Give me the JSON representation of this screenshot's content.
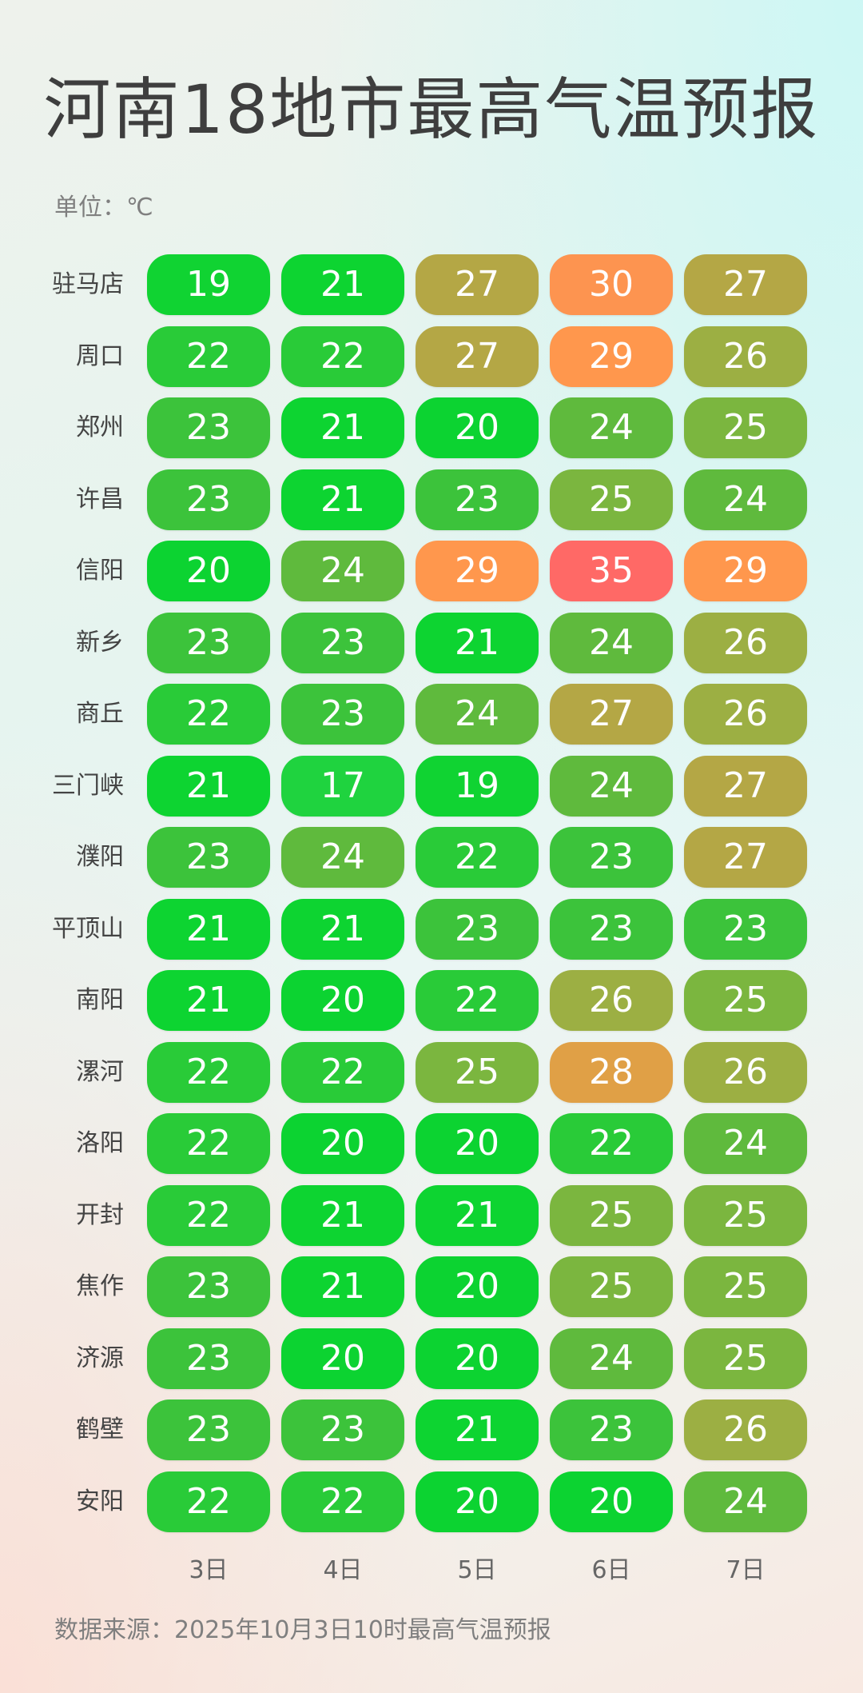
{
  "title": "河南18地市最高气温预报",
  "unit": "单位：℃",
  "source": "数据来源：2025年10月3日10时最高气温预报",
  "chart_data": {
    "type": "heatmap",
    "title": "河南18地市最高气温预报",
    "unit": "℃",
    "columns": [
      "3日",
      "4日",
      "5日",
      "6日",
      "7日"
    ],
    "rows": [
      "驻马店",
      "周口",
      "郑州",
      "许昌",
      "信阳",
      "新乡",
      "商丘",
      "三门峡",
      "濮阳",
      "平顶山",
      "南阳",
      "漯河",
      "洛阳",
      "开封",
      "焦作",
      "济源",
      "鹤壁",
      "安阳"
    ],
    "values": [
      [
        19,
        21,
        27,
        30,
        27
      ],
      [
        22,
        22,
        27,
        29,
        26
      ],
      [
        23,
        21,
        20,
        24,
        25
      ],
      [
        23,
        21,
        23,
        25,
        24
      ],
      [
        20,
        24,
        29,
        35,
        29
      ],
      [
        23,
        23,
        21,
        24,
        26
      ],
      [
        22,
        23,
        24,
        27,
        26
      ],
      [
        21,
        17,
        19,
        24,
        27
      ],
      [
        23,
        24,
        22,
        23,
        27
      ],
      [
        21,
        21,
        23,
        23,
        23
      ],
      [
        21,
        20,
        22,
        26,
        25
      ],
      [
        22,
        22,
        25,
        28,
        26
      ],
      [
        22,
        20,
        20,
        22,
        24
      ],
      [
        22,
        21,
        21,
        25,
        25
      ],
      [
        23,
        21,
        20,
        25,
        25
      ],
      [
        23,
        20,
        20,
        24,
        25
      ],
      [
        23,
        23,
        21,
        23,
        26
      ],
      [
        22,
        22,
        20,
        20,
        24
      ]
    ],
    "color_scale": {
      "17": "#1fd33f",
      "19": "#10d332",
      "20": "#0cd331",
      "21": "#0dd431",
      "22": "#29cb38",
      "23": "#3cc33b",
      "24": "#5fba3d",
      "25": "#7bb63f",
      "26": "#9caf43",
      "27": "#b4a745",
      "28": "#e0a046",
      "29": "#ff974d",
      "30": "#fd9450",
      "35": "#ff6966"
    }
  }
}
